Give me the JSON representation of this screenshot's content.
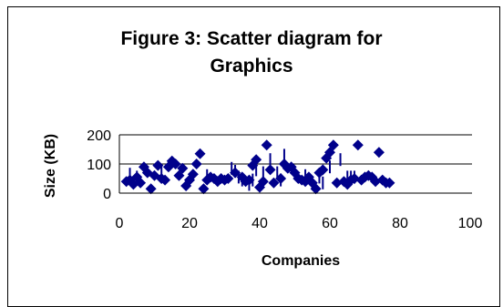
{
  "chart_data": {
    "type": "scatter",
    "title_lines": [
      "Figure 3: Scatter diagram for",
      "Graphics"
    ],
    "xlabel": "Companies",
    "ylabel": "Size (KB)",
    "xlim": [
      0,
      100
    ],
    "ylim": [
      0,
      200
    ],
    "x_ticks": [
      "0",
      "20",
      "40",
      "60",
      "80",
      "100"
    ],
    "y_ticks": [
      "0",
      "100",
      "200"
    ],
    "grid": "horizontal",
    "legend": "none",
    "marker": "diamond",
    "color": "#00008b",
    "points": [
      [
        2,
        40
      ],
      [
        3,
        45
      ],
      [
        4,
        30
      ],
      [
        5,
        55
      ],
      [
        6,
        35
      ],
      [
        7,
        90
      ],
      [
        8,
        70
      ],
      [
        9,
        15
      ],
      [
        10,
        60
      ],
      [
        11,
        95
      ],
      [
        12,
        50
      ],
      [
        13,
        45
      ],
      [
        14,
        90
      ],
      [
        15,
        110
      ],
      [
        16,
        100
      ],
      [
        17,
        60
      ],
      [
        18,
        85
      ],
      [
        19,
        25
      ],
      [
        20,
        45
      ],
      [
        21,
        65
      ],
      [
        22,
        100
      ],
      [
        23,
        135
      ],
      [
        24,
        15
      ],
      [
        25,
        45
      ],
      [
        26,
        55
      ],
      [
        27,
        50
      ],
      [
        28,
        40
      ],
      [
        29,
        50
      ],
      [
        30,
        45
      ],
      [
        31,
        50
      ],
      [
        33,
        70
      ],
      [
        35,
        55
      ],
      [
        36,
        40
      ],
      [
        37,
        45
      ],
      [
        38,
        95
      ],
      [
        39,
        115
      ],
      [
        40,
        20
      ],
      [
        41,
        40
      ],
      [
        42,
        165
      ],
      [
        43,
        80
      ],
      [
        44,
        35
      ],
      [
        46,
        50
      ],
      [
        47,
        100
      ],
      [
        48,
        85
      ],
      [
        49,
        90
      ],
      [
        50,
        70
      ],
      [
        51,
        50
      ],
      [
        52,
        45
      ],
      [
        53,
        40
      ],
      [
        54,
        55
      ],
      [
        55,
        35
      ],
      [
        56,
        15
      ],
      [
        57,
        70
      ],
      [
        58,
        80
      ],
      [
        59,
        120
      ],
      [
        60,
        140
      ],
      [
        61,
        165
      ],
      [
        62,
        35
      ],
      [
        64,
        40
      ],
      [
        65,
        30
      ],
      [
        66,
        45
      ],
      [
        67,
        50
      ],
      [
        68,
        165
      ],
      [
        69,
        45
      ],
      [
        70,
        55
      ],
      [
        71,
        60
      ],
      [
        72,
        55
      ],
      [
        73,
        40
      ],
      [
        74,
        140
      ],
      [
        75,
        45
      ],
      [
        76,
        35
      ],
      [
        77,
        35
      ]
    ],
    "tick_points": [
      [
        3,
        65
      ],
      [
        5,
        55
      ],
      [
        12,
        70
      ],
      [
        25,
        60
      ],
      [
        32,
        85
      ],
      [
        33,
        75
      ],
      [
        34,
        55
      ],
      [
        35,
        45
      ],
      [
        37,
        30
      ],
      [
        38,
        45
      ],
      [
        39,
        80
      ],
      [
        41,
        70
      ],
      [
        43,
        115
      ],
      [
        45,
        70
      ],
      [
        46,
        45
      ],
      [
        47,
        130
      ],
      [
        53,
        60
      ],
      [
        57,
        55
      ],
      [
        58,
        35
      ],
      [
        60,
        90
      ],
      [
        63,
        115
      ],
      [
        65,
        55
      ],
      [
        66,
        55
      ],
      [
        67,
        55
      ]
    ]
  }
}
